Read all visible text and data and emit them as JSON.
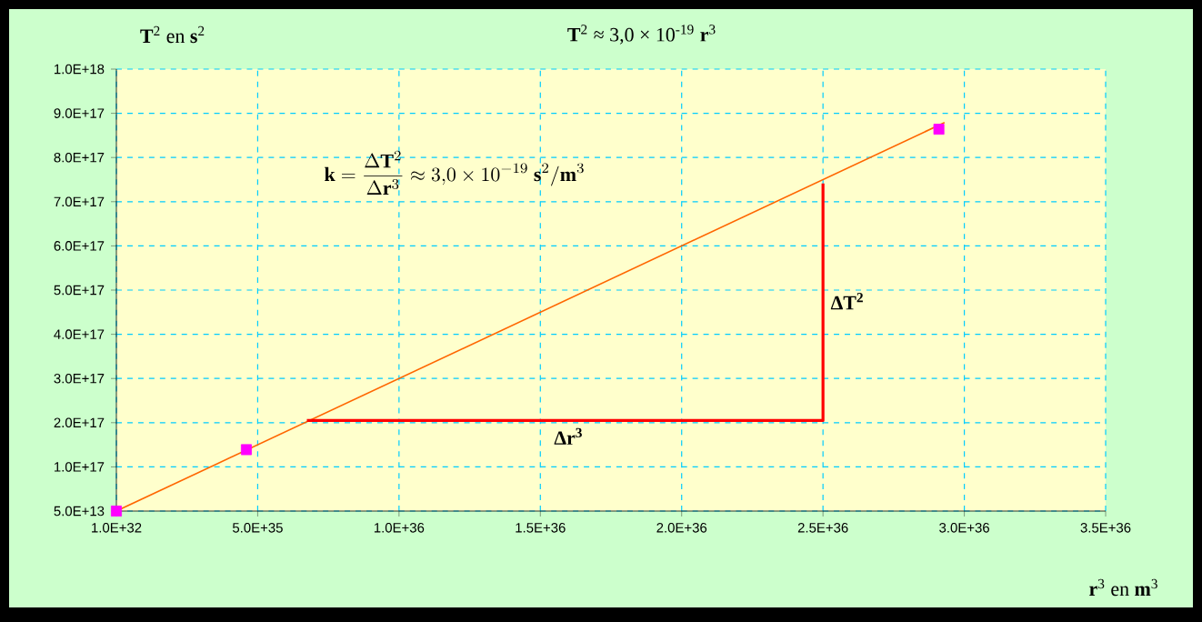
{
  "chart_data": {
    "type": "scatter",
    "title": "**T**$^{2}$ ≈ 3,0 × 10$^{-19}$ **r**$^{3}$",
    "ylabel": "**T**$^{2}$ en **s**$^{2}$",
    "xlabel": "**r**$^{3}$ en **m**$^{3}$",
    "xlim": [
      1e+32,
      3.5e+36
    ],
    "ylim": [
      50000000000000.0,
      1e+18
    ],
    "xticks": [
      {
        "value": 1e+32,
        "label": "1.0E+32"
      },
      {
        "value": 5e+35,
        "label": "5.0E+35"
      },
      {
        "value": 1e+36,
        "label": "1.0E+36"
      },
      {
        "value": 1.5e+36,
        "label": "1.5E+36"
      },
      {
        "value": 2e+36,
        "label": "2.0E+36"
      },
      {
        "value": 2.5e+36,
        "label": "2.5E+36"
      },
      {
        "value": 3e+36,
        "label": "3.0E+36"
      },
      {
        "value": 3.5e+36,
        "label": "3.5E+36"
      }
    ],
    "yticks": [
      {
        "value": 50000000000000.0,
        "label": "5.0E+13"
      },
      {
        "value": 1e+17,
        "label": "1.0E+17"
      },
      {
        "value": 2e+17,
        "label": "2.0E+17"
      },
      {
        "value": 3e+17,
        "label": "3.0E+17"
      },
      {
        "value": 4e+17,
        "label": "4.0E+17"
      },
      {
        "value": 5e+17,
        "label": "5.0E+17"
      },
      {
        "value": 6e+17,
        "label": "6.0E+17"
      },
      {
        "value": 7e+17,
        "label": "7.0E+17"
      },
      {
        "value": 8e+17,
        "label": "8.0E+17"
      },
      {
        "value": 9e+17,
        "label": "9.0E+17"
      },
      {
        "value": 1e+18,
        "label": "1.0E+18"
      }
    ],
    "grid": true,
    "marker": "square",
    "series": [
      {
        "color": "#ff00ff",
        "x": [
          1e+32,
          4.6e+35,
          2.91e+36
        ],
        "values": [
          50000000000000.0,
          1.39e+17,
          8.64e+17
        ]
      },
      {
        "type": "line",
        "color": "#ff6600",
        "marker": "none",
        "x": [
          1e+32,
          2.93e+36
        ],
        "values": [
          50000000000000.0,
          8.79e+17
        ]
      },
      {
        "type": "line",
        "color": "#ff0000",
        "marker": "none",
        "x": [
          6.74e+35,
          2.5e+36,
          2.5e+36
        ],
        "values": [
          2.05e+17,
          2.05e+17,
          7.41e+17
        ]
      }
    ],
    "annotations": [
      "\\mathbf{k}=\\frac{\\Delta \\mathbf{T}^{2}}{\\Delta \\mathbf{r}^{3}}\\approx 3{,}0\\times 10^{-19}\\ \\mathbf{s}^{2}/\\mathbf{m}^{3}",
      {
        "text": "ΔT$^{2}$",
        "x": 2.5e+36,
        "y": 4.75e+17
      },
      {
        "text": "Δr$^{3}$",
        "x": 1.6e+36,
        "y": 2.05e+17
      }
    ]
  }
}
